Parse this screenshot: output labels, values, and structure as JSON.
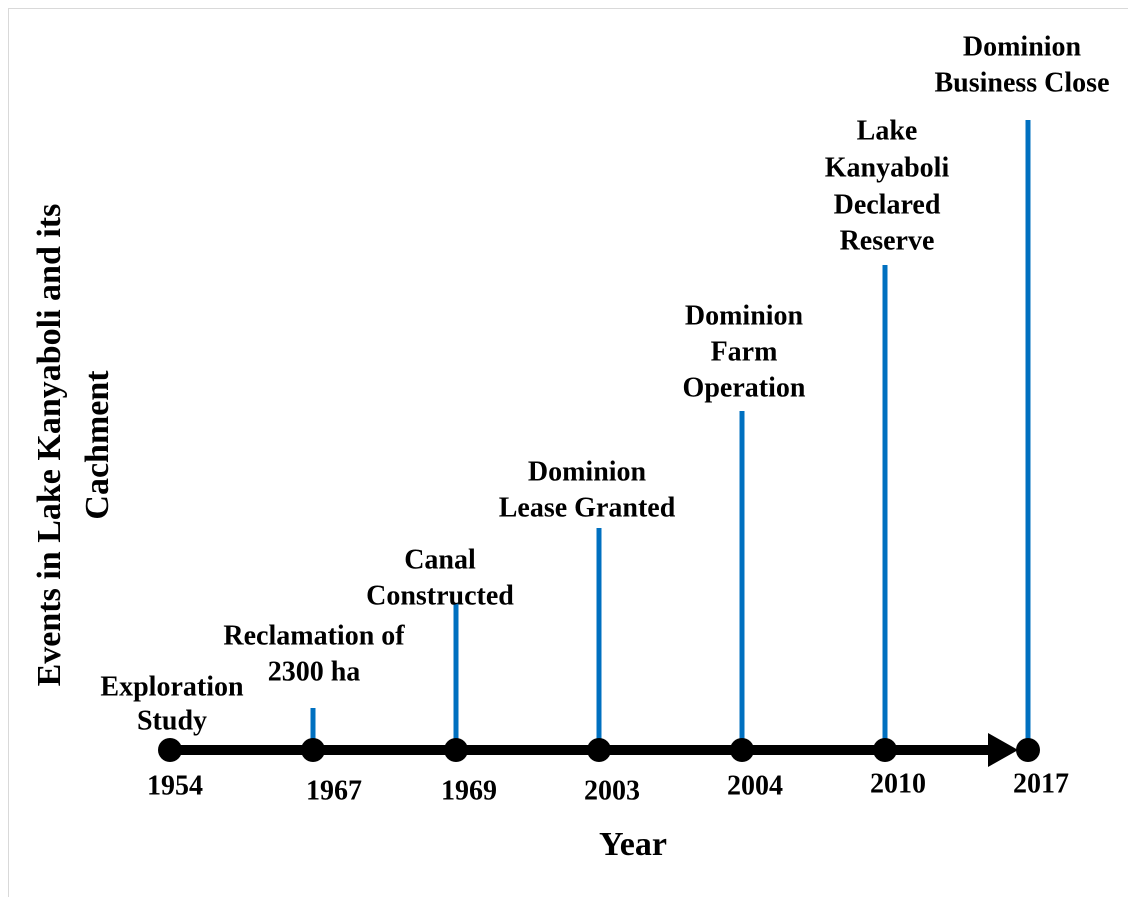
{
  "y_axis_title": [
    "Events in Lake Kanyaboli and its",
    "Cachment"
  ],
  "x_axis_title": "Year",
  "events": [
    {
      "year": "1954",
      "label": [
        "Exploration",
        "Study"
      ]
    },
    {
      "year": "1967",
      "label": [
        "Reclamation of",
        "2300 ha"
      ]
    },
    {
      "year": "1969",
      "label": [
        "Canal",
        "Constructed"
      ]
    },
    {
      "year": "2003",
      "label": [
        "Dominion",
        "Lease Granted"
      ]
    },
    {
      "year": "2004",
      "label": [
        "Dominion",
        "Farm",
        "Operation"
      ]
    },
    {
      "year": "2010",
      "label": [
        "Lake",
        "Kanyaboli",
        "Declared",
        "Reserve"
      ]
    },
    {
      "year": "2017",
      "label": [
        "Dominion",
        "Business Close"
      ]
    }
  ]
}
